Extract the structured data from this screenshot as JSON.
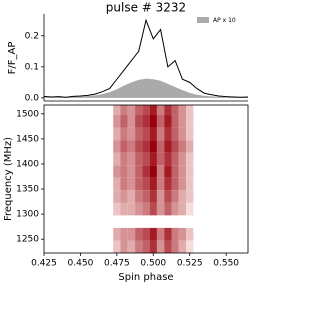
{
  "chart_data": [
    {
      "type": "line",
      "title": "pulse # 3232",
      "ylabel": "F/F_AP",
      "x": [
        0.425,
        0.43,
        0.435,
        0.44,
        0.445,
        0.45,
        0.455,
        0.46,
        0.465,
        0.47,
        0.475,
        0.48,
        0.485,
        0.49,
        0.495,
        0.5,
        0.505,
        0.51,
        0.515,
        0.52,
        0.525,
        0.53,
        0.535,
        0.54,
        0.545,
        0.55,
        0.555,
        0.56,
        0.565
      ],
      "series": [
        {
          "name": "AP x 10",
          "color": "#aaaaaa",
          "fill": true,
          "values": [
            0.002,
            0.002,
            0.003,
            0.003,
            0.004,
            0.005,
            0.006,
            0.008,
            0.012,
            0.018,
            0.028,
            0.04,
            0.05,
            0.058,
            0.062,
            0.06,
            0.055,
            0.045,
            0.035,
            0.025,
            0.016,
            0.01,
            0.007,
            0.005,
            0.004,
            0.003,
            0.003,
            0.002,
            0.002
          ]
        },
        {
          "color": "#000000",
          "values": [
            0.005,
            0.003,
            0.004,
            0.002,
            0.005,
            0.006,
            0.008,
            0.012,
            0.02,
            0.03,
            0.06,
            0.09,
            0.12,
            0.15,
            0.25,
            0.19,
            0.22,
            0.1,
            0.12,
            0.06,
            0.05,
            0.03,
            0.015,
            0.01,
            0.006,
            0.004,
            0.003,
            0.002,
            0.003
          ]
        }
      ],
      "xlim": [
        0.425,
        0.565
      ],
      "ylim": [
        -0.01,
        0.27
      ],
      "yticks": [
        {
          "value": 0,
          "label": "0.0"
        },
        0.1,
        0.2
      ],
      "legend": "upper right"
    },
    {
      "type": "heatmap",
      "xlabel": "Spin phase",
      "ylabel": "Frequency (MHz)",
      "x": [
        0.475,
        0.48,
        0.485,
        0.49,
        0.495,
        0.5,
        0.505,
        0.51,
        0.515,
        0.52,
        0.525
      ],
      "y": [
        1235,
        1260,
        1285,
        1310,
        1335,
        1360,
        1385,
        1410,
        1435,
        1460,
        1485,
        1510
      ],
      "z": [
        [
          0.2,
          0.4,
          0.3,
          0.5,
          0.6,
          0.8,
          0.4,
          0.7,
          0.5,
          0.3,
          0.1
        ],
        [
          0.3,
          0.4,
          0.4,
          0.6,
          0.7,
          0.9,
          0.5,
          0.8,
          0.5,
          0.4,
          0.2
        ],
        [
          null,
          null,
          null,
          null,
          null,
          null,
          null,
          null,
          null,
          null,
          null
        ],
        [
          0.2,
          0.3,
          0.3,
          0.4,
          0.5,
          0.7,
          0.4,
          0.6,
          0.4,
          0.3,
          0.1
        ],
        [
          0.3,
          0.4,
          0.3,
          0.5,
          0.6,
          0.8,
          0.4,
          0.7,
          0.5,
          0.3,
          0.2
        ],
        [
          0.3,
          0.5,
          0.4,
          0.6,
          0.7,
          0.9,
          0.5,
          0.8,
          0.6,
          0.4,
          0.2
        ],
        [
          0.4,
          0.5,
          0.4,
          0.6,
          0.8,
          1.0,
          0.5,
          0.9,
          0.6,
          0.4,
          0.2
        ],
        [
          0.3,
          0.5,
          0.4,
          0.6,
          0.7,
          0.9,
          0.6,
          0.8,
          0.6,
          0.4,
          0.2
        ],
        [
          0.4,
          0.6,
          0.5,
          0.7,
          0.8,
          1.0,
          0.6,
          0.9,
          0.7,
          0.5,
          0.3
        ],
        [
          0.3,
          0.5,
          0.4,
          0.6,
          0.7,
          0.9,
          0.5,
          0.8,
          0.6,
          0.4,
          0.2
        ],
        [
          0.4,
          0.6,
          0.4,
          0.7,
          0.8,
          1.0,
          0.6,
          0.9,
          0.6,
          0.4,
          0.2
        ],
        [
          0.3,
          0.5,
          0.4,
          0.6,
          0.7,
          0.9,
          0.5,
          0.8,
          0.6,
          0.4,
          0.2
        ]
      ],
      "colormap": [
        "#fff5f0",
        "#99000d"
      ],
      "xlim": [
        0.425,
        0.565
      ],
      "ylim": [
        1222.5,
        1517.5
      ],
      "xticks": [
        0.425,
        {
          "value": 0.45,
          "label": "0.450"
        },
        0.475,
        {
          "value": 0.5,
          "label": "0.500"
        },
        0.525,
        {
          "value": 0.55,
          "label": "0.550"
        }
      ],
      "yticks": [
        1250,
        1300,
        1350,
        1400,
        1450,
        1500
      ]
    }
  ]
}
